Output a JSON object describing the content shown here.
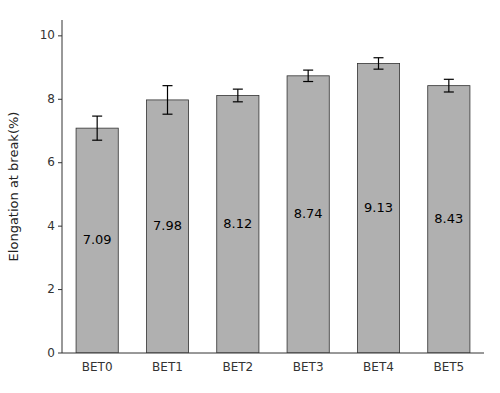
{
  "chart_data": {
    "type": "bar",
    "categories": [
      "BET0",
      "BET1",
      "BET2",
      "BET3",
      "BET4",
      "BET5"
    ],
    "values": [
      7.09,
      7.98,
      8.12,
      8.74,
      9.13,
      8.43
    ],
    "errors": [
      0.38,
      0.45,
      0.2,
      0.18,
      0.18,
      0.2
    ],
    "color": "#b0b0b0",
    "ylabel": "Elongation at break(%)",
    "ylim": [
      0,
      10.5
    ],
    "yticks": [
      0,
      2,
      4,
      6,
      8,
      10
    ],
    "data_labels": true,
    "grid": false
  }
}
